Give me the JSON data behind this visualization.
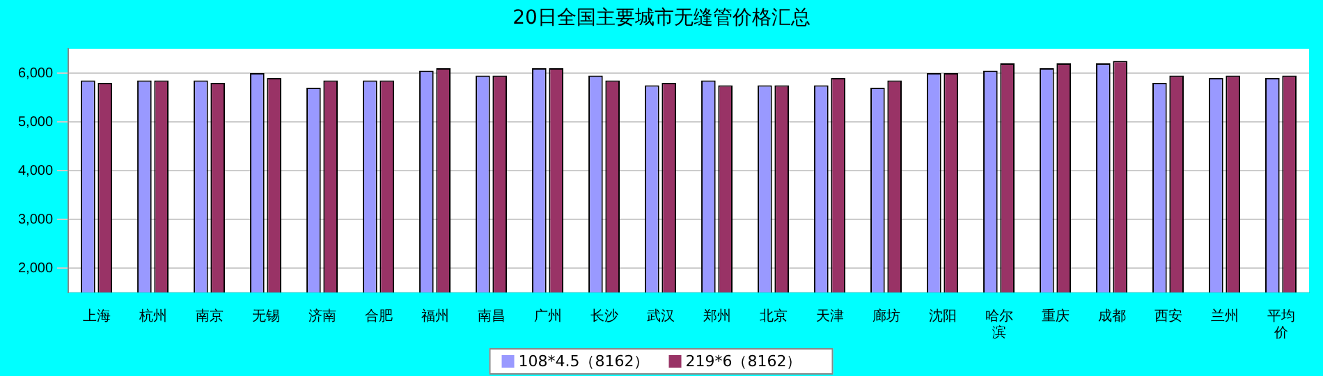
{
  "chart_data": {
    "type": "bar",
    "title": "20日全国主要城市无缝管价格汇总",
    "categories": [
      "上海",
      "杭州",
      "南京",
      "无锡",
      "济南",
      "合肥",
      "福州",
      "南昌",
      "广州",
      "长沙",
      "武汉",
      "郑州",
      "北京",
      "天津",
      "廊坊",
      "沈阳",
      "哈尔滨",
      "重庆",
      "成都",
      "西安",
      "兰州",
      "平均价"
    ],
    "series": [
      {
        "name": "108*4.5（8162）",
        "color": "#9999ff",
        "values": [
          5850,
          5850,
          5850,
          6000,
          5700,
          5850,
          6050,
          5950,
          6100,
          5950,
          5750,
          5850,
          5750,
          5750,
          5700,
          6000,
          6050,
          6100,
          6200,
          5800,
          5900,
          5900
        ]
      },
      {
        "name": "219*6（8162）",
        "color": "#993366",
        "values": [
          5800,
          5850,
          5800,
          5900,
          5850,
          5850,
          6100,
          5950,
          6100,
          5850,
          5800,
          5750,
          5750,
          5900,
          5850,
          6000,
          6200,
          6200,
          6250,
          5950,
          5950,
          5950
        ]
      }
    ],
    "ylim": [
      1500,
      6500
    ],
    "yticks": [
      {
        "value": 2000,
        "label": "2,000"
      },
      {
        "value": 3000,
        "label": "3,000"
      },
      {
        "value": 4000,
        "label": "4,000"
      },
      {
        "value": 5000,
        "label": "5,000"
      },
      {
        "value": 6000,
        "label": "6,000"
      }
    ],
    "grid": "y",
    "legend": "bottom"
  }
}
